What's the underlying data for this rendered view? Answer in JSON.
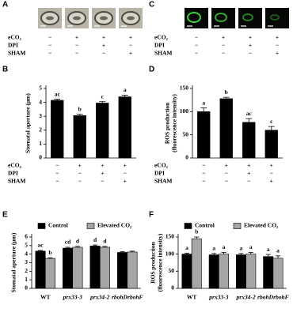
{
  "image_panels": [
    {
      "panel": "A",
      "style": "brightfield",
      "treatments": [
        {
          "label": "eCO₂",
          "signs": [
            "−",
            "+",
            "+",
            "+"
          ]
        },
        {
          "label": "DPI",
          "signs": [
            "−",
            "−",
            "+",
            "−"
          ]
        },
        {
          "label": "SHAM",
          "signs": [
            "−",
            "−",
            "−",
            "+"
          ]
        }
      ]
    },
    {
      "panel": "C",
      "style": "fluorescence",
      "treatments": [
        {
          "label": "eCO₂",
          "signs": [
            "−",
            "+",
            "+",
            "+"
          ]
        },
        {
          "label": "DPI",
          "signs": [
            "−",
            "−",
            "+",
            "−"
          ]
        },
        {
          "label": "SHAM",
          "signs": [
            "−",
            "−",
            "−",
            "+"
          ]
        }
      ]
    }
  ],
  "chart_data": [
    {
      "panel": "B",
      "type": "bar",
      "ylabel": [
        "Stomatal aperture (μm)"
      ],
      "ylim": [
        0,
        5
      ],
      "yticks": [
        0,
        1,
        2,
        3,
        4,
        5
      ],
      "series": [
        {
          "color": "#000000",
          "values": [
            4.15,
            3.05,
            3.95,
            4.4
          ],
          "errors": [
            0.08,
            0.1,
            0.1,
            0.12
          ],
          "letters": [
            "ac",
            "b",
            "c",
            "a"
          ]
        }
      ],
      "treatments": [
        {
          "label": "eCO₂",
          "signs": [
            "−",
            "+",
            "+",
            "+"
          ]
        },
        {
          "label": "DPI",
          "signs": [
            "−",
            "−",
            "+",
            "−"
          ]
        },
        {
          "label": "SHAM",
          "signs": [
            "−",
            "−",
            "−",
            "+"
          ]
        }
      ]
    },
    {
      "panel": "D",
      "type": "bar",
      "ylabel": [
        "ROS production",
        "(fluorescence intensity)"
      ],
      "ylim": [
        0,
        150
      ],
      "yticks": [
        0,
        50,
        100,
        150
      ],
      "series": [
        {
          "color": "#000000",
          "values": [
            100,
            128,
            77,
            60
          ],
          "errors": [
            8,
            3,
            8,
            8
          ],
          "letters": [
            "a",
            "b",
            "ac",
            "c"
          ]
        }
      ],
      "treatments": [
        {
          "label": "eCO₂",
          "signs": [
            "−",
            "+",
            "+",
            "+"
          ]
        },
        {
          "label": "DPI",
          "signs": [
            "−",
            "−",
            "+",
            "−"
          ]
        },
        {
          "label": "SHAM",
          "signs": [
            "−",
            "−",
            "−",
            "+"
          ]
        }
      ]
    },
    {
      "panel": "E",
      "type": "bar",
      "ylabel": [
        "Stomatal aperture (μm)"
      ],
      "ylim": [
        0,
        6
      ],
      "yticks": [
        0,
        1,
        2,
        3,
        4,
        5,
        6
      ],
      "categories": [
        "WT",
        "prx33-3",
        "prx34-2",
        "rbohDrbohF"
      ],
      "category_italic": [
        false,
        true,
        true,
        true
      ],
      "series": [
        {
          "name": "Control",
          "color": "#000000",
          "values": [
            4.35,
            4.7,
            4.95,
            4.2
          ],
          "errors": [
            0.08,
            0.1,
            0.12,
            0.08
          ],
          "letters": [
            "ac",
            "cd",
            "d",
            null
          ]
        },
        {
          "name": "Elevated CO₂",
          "color": "#a6a6a6",
          "values": [
            3.5,
            4.8,
            4.8,
            4.25
          ],
          "errors": [
            0.07,
            0.1,
            0.1,
            0.1
          ],
          "letters": [
            "b",
            "d",
            "d",
            null
          ]
        }
      ]
    },
    {
      "panel": "F",
      "type": "bar",
      "ylabel": [
        "ROS production",
        "(fluorescence intensity)"
      ],
      "ylim": [
        0,
        150
      ],
      "yticks": [
        0,
        50,
        100,
        150
      ],
      "categories": [
        "WT",
        "prx33-3",
        "prx34-2",
        "rbohDrbohF"
      ],
      "category_italic": [
        false,
        true,
        true,
        true
      ],
      "series": [
        {
          "name": "Control",
          "color": "#000000",
          "values": [
            100,
            98,
            98,
            93
          ],
          "errors": [
            3,
            4,
            4,
            6
          ],
          "letters": [
            "a",
            "a",
            "a",
            "a"
          ]
        },
        {
          "name": "Elevated CO₂",
          "color": "#a6a6a6",
          "values": [
            145,
            100,
            100,
            88
          ],
          "errors": [
            5,
            5,
            5,
            7
          ],
          "letters": [
            "b",
            "a",
            "a",
            "a"
          ]
        }
      ]
    }
  ]
}
